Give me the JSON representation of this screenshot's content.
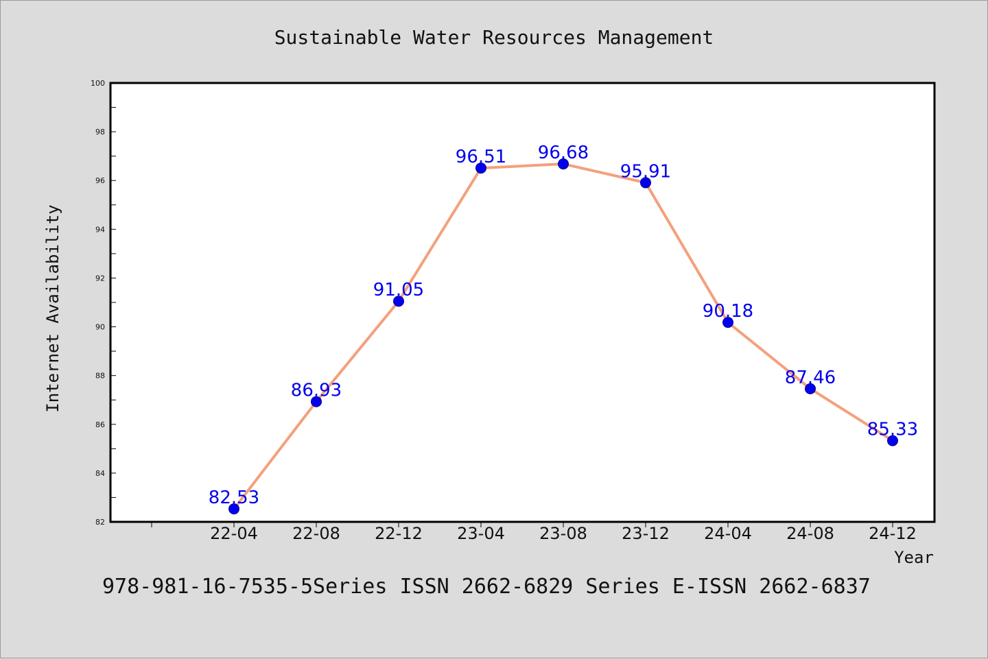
{
  "chart_data": {
    "type": "line",
    "title": "Sustainable Water Resources Management",
    "xlabel": "Year",
    "ylabel": "Internet Availability",
    "categories": [
      "22-04",
      "22-08",
      "22-12",
      "23-04",
      "23-08",
      "23-12",
      "24-04",
      "24-08",
      "24-12"
    ],
    "series": [
      {
        "values": [
          82.53,
          86.93,
          91.05,
          96.51,
          96.68,
          95.91,
          90.18,
          87.46,
          85.33
        ]
      }
    ],
    "ylim": [
      82,
      100
    ],
    "yticks": [
      82,
      84,
      86,
      88,
      90,
      92,
      94,
      96,
      98,
      100
    ],
    "grid": false,
    "legend": "none",
    "line_color": "#f4a07c",
    "marker_color": "#0000ee",
    "label_color": "#0000ee",
    "plot_background": "#ffffff",
    "page_background": "#dcdcdc"
  },
  "footer_text": "978-981-16-7535-5Series ISSN 2662-6829 Series E-ISSN 2662-6837"
}
